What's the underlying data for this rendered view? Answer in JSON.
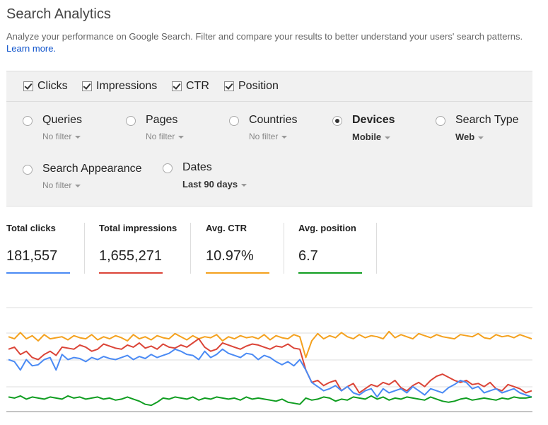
{
  "header": {
    "title": "Search Analytics",
    "description": "Analyze your performance on Google Search. Filter and compare your results to better understand your users' search patterns.",
    "learn_more": "Learn more."
  },
  "metrics": [
    {
      "label": "Clicks",
      "checked": true
    },
    {
      "label": "Impressions",
      "checked": true
    },
    {
      "label": "CTR",
      "checked": true
    },
    {
      "label": "Position",
      "checked": true
    }
  ],
  "groups": [
    {
      "label": "Queries",
      "filter": "No filter",
      "selected": false
    },
    {
      "label": "Pages",
      "filter": "No filter",
      "selected": false
    },
    {
      "label": "Countries",
      "filter": "No filter",
      "selected": false
    },
    {
      "label": "Devices",
      "filter": "Mobile",
      "selected": true
    },
    {
      "label": "Search Type",
      "filter": "Web",
      "selected": false
    },
    {
      "label": "Search Appearance",
      "filter": "No filter",
      "selected": false
    },
    {
      "label": "Dates",
      "filter": "Last 90 days",
      "selected": false
    }
  ],
  "totals": [
    {
      "label": "Total clicks",
      "value": "181,557",
      "color": "#4a8af4"
    },
    {
      "label": "Total impressions",
      "value": "1,655,271",
      "color": "#db4437"
    },
    {
      "label": "Avg. CTR",
      "value": "10.97%",
      "color": "#f4a11e"
    },
    {
      "label": "Avg. position",
      "value": "6.7",
      "color": "#0f9d20"
    }
  ],
  "chart_data": {
    "type": "line",
    "series": [
      {
        "color": "#f4a11e",
        "values": [
          72,
          70,
          76,
          70,
          73,
          68,
          74,
          70,
          71,
          72,
          69,
          73,
          71,
          70,
          74,
          69,
          72,
          70,
          73,
          71,
          68,
          74,
          70,
          72,
          69,
          73,
          71,
          70,
          75,
          72,
          69,
          73,
          70,
          72,
          71,
          74,
          68,
          72,
          70,
          73,
          71,
          72,
          70,
          74,
          69,
          73,
          71,
          70,
          74,
          72,
          52,
          68,
          75,
          70,
          73,
          71,
          76,
          72,
          70,
          74,
          71,
          73,
          72,
          70,
          77,
          71,
          74,
          72,
          70,
          75,
          73,
          71,
          74,
          72,
          71,
          70,
          74,
          73,
          72,
          75,
          71,
          70,
          74,
          72,
          73,
          71,
          74,
          72,
          70
        ]
      },
      {
        "color": "#db4437",
        "values": [
          60,
          62,
          55,
          58,
          52,
          50,
          55,
          58,
          54,
          62,
          61,
          60,
          64,
          62,
          58,
          60,
          65,
          63,
          61,
          60,
          64,
          62,
          66,
          61,
          63,
          60,
          65,
          62,
          61,
          64,
          62,
          66,
          70,
          62,
          58,
          60,
          66,
          64,
          62,
          60,
          63,
          65,
          64,
          62,
          60,
          63,
          62,
          65,
          61,
          60,
          40,
          28,
          30,
          25,
          28,
          30,
          20,
          24,
          27,
          18,
          22,
          26,
          24,
          28,
          26,
          30,
          23,
          20,
          25,
          28,
          24,
          30,
          34,
          36,
          33,
          30,
          28,
          30,
          26,
          27,
          24,
          28,
          22,
          20,
          26,
          24,
          22,
          18,
          20
        ]
      },
      {
        "color": "#4a8af4",
        "values": [
          50,
          48,
          40,
          50,
          44,
          45,
          50,
          52,
          40,
          55,
          50,
          52,
          51,
          48,
          52,
          50,
          53,
          51,
          50,
          52,
          54,
          50,
          53,
          51,
          55,
          52,
          54,
          56,
          60,
          58,
          55,
          54,
          50,
          58,
          52,
          55,
          60,
          56,
          54,
          52,
          56,
          55,
          50,
          54,
          52,
          48,
          45,
          48,
          44,
          50,
          40,
          28,
          24,
          20,
          22,
          25,
          20,
          24,
          18,
          16,
          20,
          22,
          14,
          22,
          18,
          20,
          22,
          18,
          24,
          20,
          16,
          22,
          20,
          18,
          23,
          26,
          30,
          28,
          22,
          24,
          18,
          20,
          22,
          18,
          20,
          22,
          18,
          16,
          14
        ]
      },
      {
        "color": "#0f9d20",
        "values": [
          14,
          13,
          15,
          12,
          14,
          13,
          12,
          14,
          13,
          12,
          15,
          13,
          14,
          12,
          13,
          14,
          12,
          13,
          11,
          12,
          14,
          12,
          10,
          7,
          6,
          9,
          13,
          12,
          14,
          13,
          12,
          14,
          11,
          13,
          12,
          14,
          13,
          12,
          13,
          11,
          14,
          12,
          13,
          12,
          11,
          10,
          12,
          9,
          8,
          7,
          13,
          11,
          12,
          14,
          13,
          10,
          12,
          11,
          14,
          13,
          12,
          15,
          12,
          14,
          11,
          13,
          12,
          14,
          13,
          12,
          11,
          14,
          12,
          10,
          9,
          10,
          12,
          13,
          11,
          12,
          13,
          12,
          11,
          13,
          12,
          14,
          13,
          13,
          14
        ]
      }
    ]
  }
}
